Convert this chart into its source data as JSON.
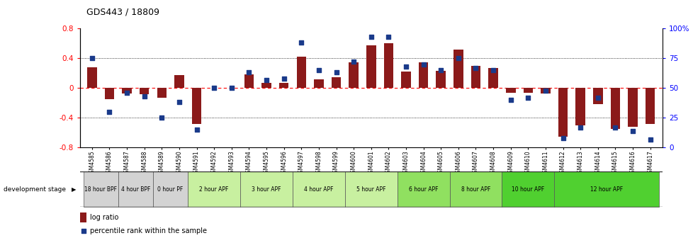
{
  "title": "GDS443 / 18809",
  "samples": [
    "GSM4585",
    "GSM4586",
    "GSM4587",
    "GSM4588",
    "GSM4589",
    "GSM4590",
    "GSM4591",
    "GSM4592",
    "GSM4593",
    "GSM4594",
    "GSM4595",
    "GSM4596",
    "GSM4597",
    "GSM4598",
    "GSM4599",
    "GSM4600",
    "GSM4601",
    "GSM4602",
    "GSM4603",
    "GSM4604",
    "GSM4605",
    "GSM4606",
    "GSM4607",
    "GSM4608",
    "GSM4609",
    "GSM4610",
    "GSM4611",
    "GSM4612",
    "GSM4613",
    "GSM4614",
    "GSM4615",
    "GSM4616",
    "GSM4617"
  ],
  "log_ratio": [
    0.28,
    -0.15,
    -0.07,
    -0.08,
    -0.13,
    0.17,
    -0.48,
    0.0,
    0.0,
    0.18,
    0.07,
    0.07,
    0.42,
    0.12,
    0.15,
    0.35,
    0.57,
    0.6,
    0.22,
    0.35,
    0.23,
    0.52,
    0.3,
    0.27,
    -0.06,
    -0.06,
    -0.07,
    -0.65,
    -0.5,
    -0.22,
    -0.55,
    -0.52,
    -0.48
  ],
  "percentile": [
    75,
    30,
    46,
    43,
    25,
    38,
    15,
    50,
    50,
    63,
    57,
    58,
    88,
    65,
    63,
    72,
    93,
    93,
    68,
    70,
    65,
    75,
    67,
    65,
    40,
    42,
    48,
    8,
    17,
    42,
    17,
    14,
    7
  ],
  "stages": [
    {
      "label": "18 hour BPF",
      "start": 0,
      "end": 2,
      "color": "#d3d3d3"
    },
    {
      "label": "4 hour BPF",
      "start": 2,
      "end": 4,
      "color": "#d3d3d3"
    },
    {
      "label": "0 hour PF",
      "start": 4,
      "end": 6,
      "color": "#d3d3d3"
    },
    {
      "label": "2 hour APF",
      "start": 6,
      "end": 9,
      "color": "#c8f0a0"
    },
    {
      "label": "3 hour APF",
      "start": 9,
      "end": 12,
      "color": "#c8f0a0"
    },
    {
      "label": "4 hour APF",
      "start": 12,
      "end": 15,
      "color": "#c8f0a0"
    },
    {
      "label": "5 hour APF",
      "start": 15,
      "end": 18,
      "color": "#c8f0a0"
    },
    {
      "label": "6 hour APF",
      "start": 18,
      "end": 21,
      "color": "#90e060"
    },
    {
      "label": "8 hour APF",
      "start": 21,
      "end": 24,
      "color": "#90e060"
    },
    {
      "label": "10 hour APF",
      "start": 24,
      "end": 27,
      "color": "#50d030"
    },
    {
      "label": "12 hour APF",
      "start": 27,
      "end": 33,
      "color": "#50d030"
    }
  ],
  "bar_color": "#8B1A1A",
  "dot_color": "#1a3a8a",
  "ylim_left": [
    -0.8,
    0.8
  ],
  "ylim_right": [
    0,
    100
  ],
  "yticks_left": [
    -0.8,
    -0.4,
    0.0,
    0.4,
    0.8
  ],
  "yticks_right": [
    0,
    25,
    50,
    75,
    100
  ],
  "ytick_labels_right": [
    "0",
    "25",
    "50",
    "75",
    "100%"
  ],
  "dev_stage_label": "development stage"
}
